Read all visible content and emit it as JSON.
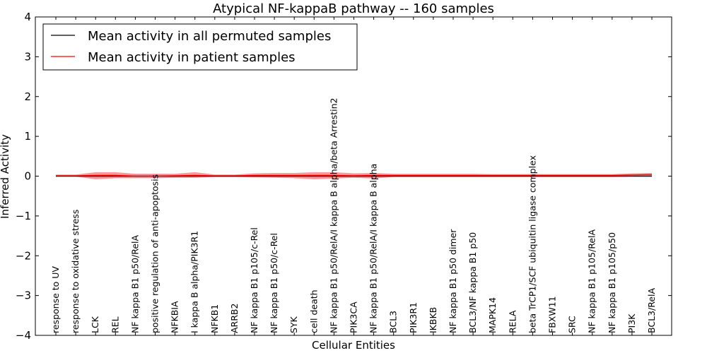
{
  "chart_data": {
    "type": "line",
    "title": "Atypical NF-kappaB pathway -- 160 samples",
    "xlabel": "Cellular Entities",
    "ylabel": "Inferred Activity",
    "ylim": [
      -4,
      4
    ],
    "yticks": [
      4,
      3,
      2,
      1,
      0,
      -1,
      -2,
      -3,
      -4
    ],
    "ytick_labels": [
      "4",
      "3",
      "2",
      "1",
      "0",
      "−1",
      "−2",
      "−3",
      "−4"
    ],
    "grid": false,
    "legend_position": "top-left",
    "categories": [
      "response to UV",
      "response to oxidative stress",
      "LCK",
      "REL",
      "NF kappa B1 p50/RelA",
      "positive regulation of anti-apoptosis",
      "NFKBIA",
      "I kappa B alpha/PIK3R1",
      "NFKB1",
      "ARRB2",
      "NF kappa B1 p105/c-Rel",
      "NF kappa B1 p50/c-Rel",
      "SYK",
      "cell death",
      "NF kappa B1 p50/RelA/I kappa B alpha/beta Arrestin2",
      "PIK3CA",
      "NF kappa B1 p50/RelA/I kappa B alpha",
      "BCL3",
      "PIK3R1",
      "IKBKB",
      "NF kappa B1 p50 dimer",
      "BCL3/NF kappa B1 p50",
      "MAPK14",
      "RELA",
      "beta TrCP1/SCF ubiquitin ligase complex",
      "FBXW11",
      "SRC",
      "NF kappa B1 p105/RelA",
      "NF kappa B1 p105/p50",
      "PI3K",
      "BCL3/RelA"
    ],
    "series": [
      {
        "name": "Mean activity in all permuted samples",
        "color": "#000000",
        "values": [
          0,
          0,
          0,
          0,
          0,
          0,
          0,
          0,
          0,
          0,
          0,
          0,
          0,
          0,
          0,
          0,
          0,
          0,
          0,
          0,
          0,
          0,
          0,
          0,
          0,
          0,
          0,
          0,
          0,
          0,
          0
        ],
        "band_upper": [
          0.03,
          0.03,
          0.04,
          0.04,
          0.04,
          0.04,
          0.04,
          0.04,
          0.03,
          0.03,
          0.03,
          0.03,
          0.03,
          0.04,
          0.04,
          0.04,
          0.04,
          0.03,
          0.03,
          0.03,
          0.03,
          0.03,
          0.03,
          0.03,
          0.03,
          0.03,
          0.03,
          0.03,
          0.03,
          0.03,
          0.03
        ],
        "band_lower": [
          -0.03,
          -0.03,
          -0.04,
          -0.04,
          -0.04,
          -0.04,
          -0.04,
          -0.04,
          -0.03,
          -0.03,
          -0.03,
          -0.03,
          -0.03,
          -0.04,
          -0.04,
          -0.04,
          -0.04,
          -0.03,
          -0.03,
          -0.03,
          -0.03,
          -0.03,
          -0.03,
          -0.03,
          -0.03,
          -0.03,
          -0.03,
          -0.03,
          -0.03,
          -0.03,
          -0.03
        ],
        "band_color": "#c8c8d8"
      },
      {
        "name": "Mean activity in patient samples",
        "color": "#ff0000",
        "values": [
          0.01,
          0.01,
          0.02,
          0.02,
          0.0,
          0.0,
          0.01,
          0.02,
          0.01,
          0.01,
          0.02,
          0.02,
          0.02,
          0.02,
          0.02,
          0.01,
          0.02,
          0.02,
          0.02,
          0.02,
          0.02,
          0.02,
          0.02,
          0.02,
          0.02,
          0.02,
          0.02,
          0.02,
          0.02,
          0.03,
          0.04
        ],
        "band_upper": [
          0.04,
          0.04,
          0.1,
          0.1,
          0.06,
          0.06,
          0.06,
          0.1,
          0.04,
          0.04,
          0.07,
          0.08,
          0.08,
          0.1,
          0.1,
          0.07,
          0.08,
          0.06,
          0.06,
          0.06,
          0.06,
          0.06,
          0.05,
          0.05,
          0.05,
          0.05,
          0.05,
          0.05,
          0.05,
          0.07,
          0.08
        ],
        "band_lower": [
          -0.01,
          -0.01,
          -0.08,
          -0.05,
          -0.05,
          -0.05,
          -0.04,
          -0.04,
          -0.02,
          -0.02,
          -0.03,
          -0.04,
          -0.05,
          -0.08,
          -0.06,
          -0.04,
          -0.06,
          -0.02,
          -0.02,
          -0.02,
          -0.02,
          -0.02,
          -0.02,
          -0.02,
          -0.02,
          -0.02,
          -0.02,
          -0.02,
          -0.02,
          -0.01,
          0.0
        ],
        "band_color": "#ff0000"
      }
    ]
  }
}
